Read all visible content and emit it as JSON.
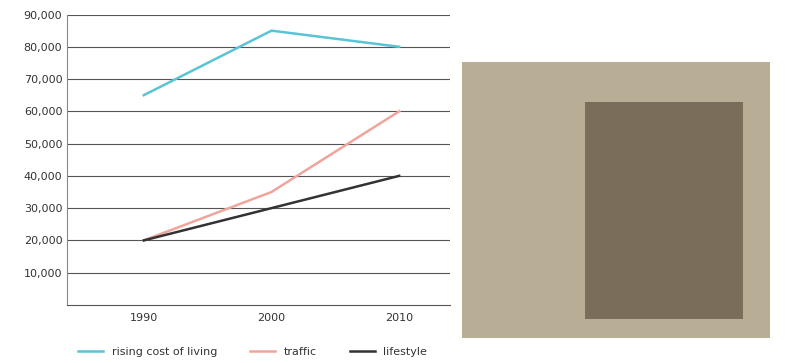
{
  "chart_data": {
    "type": "line",
    "x": [
      1990,
      2000,
      2010
    ],
    "series": [
      {
        "name": "rising cost of living",
        "color": "#5bc3d6",
        "values": [
          65000,
          85000,
          80000
        ]
      },
      {
        "name": "traffic",
        "color": "#f0a59c",
        "values": [
          20000,
          35000,
          60000
        ]
      },
      {
        "name": "lifestyle",
        "color": "#333333",
        "values": [
          20000,
          30000,
          40000
        ]
      }
    ],
    "xlim": [
      1984,
      2014
    ],
    "xticks": [
      1990,
      2000,
      2010
    ],
    "ylim": [
      0,
      90000
    ],
    "yticks": [
      {
        "value": 10000,
        "label": "10,000"
      },
      {
        "value": 20000,
        "label": "20,000"
      },
      {
        "value": 30000,
        "label": "30,000"
      },
      {
        "value": 40000,
        "label": "40,000"
      },
      {
        "value": 50000,
        "label": "50,000"
      },
      {
        "value": 60000,
        "label": "60,000"
      },
      {
        "value": 70000,
        "label": "70,000"
      },
      {
        "value": 80000,
        "label": "80,000"
      },
      {
        "value": 90000,
        "label": "90,000"
      }
    ],
    "grid": true,
    "legend": "lower center"
  }
}
